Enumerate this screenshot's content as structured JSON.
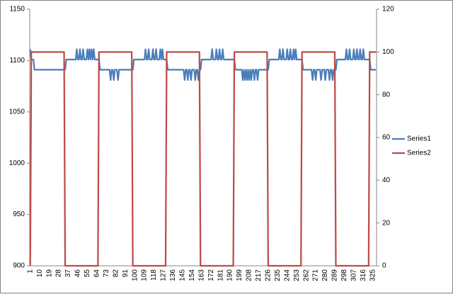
{
  "chart_data": {
    "type": "line",
    "categories": [
      1,
      null,
      null,
      null,
      null,
      null,
      null,
      null,
      null,
      10,
      null,
      null,
      null,
      null,
      null,
      null,
      null,
      null,
      19,
      null,
      null,
      null,
      null,
      null,
      null,
      null,
      null,
      28,
      null,
      null,
      null,
      null,
      null,
      null,
      null,
      null,
      37,
      null,
      null,
      null,
      null,
      null,
      null,
      null,
      null,
      46,
      null,
      null,
      null,
      null,
      null,
      null,
      null,
      null,
      55,
      null,
      null,
      null,
      null,
      null,
      null,
      null,
      null,
      64,
      null,
      null,
      null,
      null,
      null,
      null,
      null,
      null,
      73,
      null,
      null,
      null,
      null,
      null,
      null,
      null,
      null,
      82,
      null,
      null,
      null,
      null,
      null,
      null,
      null,
      null,
      91,
      null,
      null,
      null,
      null,
      null,
      null,
      null,
      null,
      100,
      null,
      null,
      null,
      null,
      null,
      null,
      null,
      null,
      109,
      null,
      null,
      null,
      null,
      null,
      null,
      null,
      null,
      118,
      null,
      null,
      null,
      null,
      null,
      null,
      null,
      null,
      127,
      null,
      null,
      null,
      null,
      null,
      null,
      null,
      null,
      136,
      null,
      null,
      null,
      null,
      null,
      null,
      null,
      null,
      145,
      null,
      null,
      null,
      null,
      null,
      null,
      null,
      null,
      154,
      null,
      null,
      null,
      null,
      null,
      null,
      null,
      null,
      163,
      null,
      null,
      null,
      null,
      null,
      null,
      null,
      null,
      172,
      null,
      null,
      null,
      null,
      null,
      null,
      null,
      null,
      181,
      null,
      null,
      null,
      null,
      null,
      null,
      null,
      null,
      190,
      null,
      null,
      null,
      null,
      null,
      null,
      null,
      null,
      199,
      null,
      null,
      null,
      null,
      null,
      null,
      null,
      null,
      208,
      null,
      null,
      null,
      null,
      null,
      null,
      null,
      null,
      217,
      null,
      null,
      null,
      null,
      null,
      null,
      null,
      null,
      226,
      null,
      null,
      null,
      null,
      null,
      null,
      null,
      null,
      235,
      null,
      null,
      null,
      null,
      null,
      null,
      null,
      null,
      244,
      null,
      null,
      null,
      null,
      null,
      null,
      null,
      null,
      253,
      null,
      null,
      null,
      null,
      null,
      null,
      null,
      null,
      262,
      null,
      null,
      null,
      null,
      null,
      null,
      null,
      null,
      271,
      null,
      null,
      null,
      null,
      null,
      null,
      null,
      null,
      280,
      null,
      null,
      null,
      null,
      null,
      null,
      null,
      null,
      289,
      null,
      null,
      null,
      null,
      null,
      null,
      null,
      null,
      298,
      null,
      null,
      null,
      null,
      null,
      null,
      null,
      null,
      307,
      null,
      null,
      null,
      null,
      null,
      null,
      null,
      null,
      316,
      null,
      null,
      null,
      null,
      null,
      null,
      null,
      null,
      325,
      null,
      null,
      null
    ],
    "series": [
      {
        "name": "Series1",
        "color": "#4a7ebb",
        "values": [
          1111,
          1101,
          1101,
          1101,
          1091,
          1091,
          1091,
          1091,
          1091,
          1091,
          1091,
          1091,
          1091,
          1091,
          1091,
          1091,
          1091,
          1091,
          1091,
          1091,
          1091,
          1091,
          1091,
          1091,
          1091,
          1091,
          1091,
          1091,
          1091,
          1091,
          1091,
          1091,
          1091,
          1091,
          1101,
          1101,
          1101,
          1101,
          1101,
          1101,
          1101,
          1101,
          1101,
          1101,
          1111,
          1101,
          1101,
          1111,
          1101,
          1101,
          1111,
          1101,
          1101,
          1101,
          1111,
          1101,
          1111,
          1101,
          1111,
          1101,
          1111,
          1101,
          1101,
          1101,
          1101,
          1101,
          1091,
          1091,
          1091,
          1091,
          1091,
          1091,
          1091,
          1091,
          1091,
          1091,
          1081,
          1091,
          1091,
          1081,
          1091,
          1091,
          1091,
          1081,
          1091,
          1091,
          1091,
          1091,
          1091,
          1091,
          1091,
          1091,
          1091,
          1091,
          1091,
          1091,
          1091,
          1091,
          1101,
          1101,
          1101,
          1101,
          1101,
          1101,
          1101,
          1101,
          1101,
          1101,
          1101,
          1111,
          1101,
          1101,
          1111,
          1101,
          1101,
          1101,
          1111,
          1101,
          1101,
          1111,
          1101,
          1101,
          1101,
          1111,
          1101,
          1111,
          1101,
          1101,
          1101,
          1101,
          1091,
          1091,
          1091,
          1091,
          1091,
          1091,
          1091,
          1091,
          1091,
          1091,
          1091,
          1091,
          1091,
          1091,
          1091,
          1091,
          1081,
          1091,
          1091,
          1081,
          1091,
          1091,
          1081,
          1091,
          1091,
          1091,
          1081,
          1091,
          1091,
          1081,
          1091,
          1091,
          1101,
          1101,
          1101,
          1101,
          1101,
          1101,
          1101,
          1101,
          1101,
          1101,
          1111,
          1101,
          1101,
          1101,
          1111,
          1101,
          1101,
          1111,
          1101,
          1101,
          1111,
          1101,
          1101,
          1101,
          1101,
          1101,
          1101,
          1101,
          1101,
          1101,
          1101,
          1101,
          1091,
          1091,
          1091,
          1091,
          1091,
          1091,
          1091,
          1081,
          1091,
          1081,
          1091,
          1081,
          1091,
          1081,
          1091,
          1081,
          1091,
          1091,
          1081,
          1091,
          1091,
          1081,
          1091,
          1091,
          1091,
          1091,
          1091,
          1091,
          1091,
          1091,
          1091,
          1091,
          1101,
          1101,
          1101,
          1101,
          1101,
          1101,
          1101,
          1101,
          1101,
          1101,
          1111,
          1101,
          1101,
          1111,
          1101,
          1101,
          1101,
          1111,
          1101,
          1101,
          1111,
          1101,
          1101,
          1111,
          1101,
          1111,
          1101,
          1101,
          1101,
          1101,
          1101,
          1101,
          1091,
          1091,
          1091,
          1091,
          1091,
          1091,
          1091,
          1091,
          1091,
          1081,
          1091,
          1091,
          1081,
          1091,
          1091,
          1091,
          1091,
          1081,
          1091,
          1091,
          1091,
          1081,
          1091,
          1091,
          1091,
          1081,
          1091,
          1091,
          1081,
          1091,
          1091,
          1091,
          1101,
          1101,
          1101,
          1101,
          1101,
          1101,
          1101,
          1101,
          1101,
          1111,
          1101,
          1101,
          1111,
          1101,
          1101,
          1101,
          1111,
          1101,
          1101,
          1111,
          1101,
          1101,
          1111,
          1101,
          1101,
          1111,
          1101,
          1101,
          1101,
          1101,
          1101,
          1101,
          1091,
          1091,
          1091,
          1091,
          1091,
          1091
        ]
      },
      {
        "name": "Series2",
        "color": "#be4b48",
        "axis": "y2",
        "values": [
          0,
          100,
          100,
          100,
          100,
          100,
          100,
          100,
          100,
          100,
          100,
          100,
          100,
          100,
          100,
          100,
          100,
          100,
          100,
          100,
          100,
          100,
          100,
          100,
          100,
          100,
          100,
          100,
          100,
          100,
          100,
          100,
          100,
          0,
          0,
          0,
          0,
          0,
          0,
          0,
          0,
          0,
          0,
          0,
          0,
          0,
          0,
          0,
          0,
          0,
          0,
          0,
          0,
          0,
          0,
          0,
          0,
          0,
          0,
          0,
          0,
          0,
          0,
          0,
          0,
          100,
          100,
          100,
          100,
          100,
          100,
          100,
          100,
          100,
          100,
          100,
          100,
          100,
          100,
          100,
          100,
          100,
          100,
          100,
          100,
          100,
          100,
          100,
          100,
          100,
          100,
          100,
          100,
          100,
          100,
          100,
          100,
          0,
          0,
          0,
          0,
          0,
          0,
          0,
          0,
          0,
          0,
          0,
          0,
          0,
          0,
          0,
          0,
          0,
          0,
          0,
          0,
          0,
          0,
          0,
          0,
          0,
          0,
          0,
          0,
          0,
          0,
          0,
          0,
          100,
          100,
          100,
          100,
          100,
          100,
          100,
          100,
          100,
          100,
          100,
          100,
          100,
          100,
          100,
          100,
          100,
          100,
          100,
          100,
          100,
          100,
          100,
          100,
          100,
          100,
          100,
          100,
          100,
          100,
          100,
          100,
          0,
          0,
          0,
          0,
          0,
          0,
          0,
          0,
          0,
          0,
          0,
          0,
          0,
          0,
          0,
          0,
          0,
          0,
          0,
          0,
          0,
          0,
          0,
          0,
          0,
          0,
          0,
          0,
          0,
          0,
          0,
          0,
          100,
          100,
          100,
          100,
          100,
          100,
          100,
          100,
          100,
          100,
          100,
          100,
          100,
          100,
          100,
          100,
          100,
          100,
          100,
          100,
          100,
          100,
          100,
          100,
          100,
          100,
          100,
          100,
          100,
          100,
          100,
          100,
          0,
          0,
          0,
          0,
          0,
          0,
          0,
          0,
          0,
          0,
          0,
          0,
          0,
          0,
          0,
          0,
          0,
          0,
          0,
          0,
          0,
          0,
          0,
          0,
          0,
          0,
          0,
          0,
          0,
          0,
          0,
          0,
          100,
          100,
          100,
          100,
          100,
          100,
          100,
          100,
          100,
          100,
          100,
          100,
          100,
          100,
          100,
          100,
          100,
          100,
          100,
          100,
          100,
          100,
          100,
          100,
          100,
          100,
          100,
          100,
          100,
          100,
          100,
          100,
          0,
          0,
          0,
          0,
          0,
          0,
          0,
          0,
          0,
          0,
          0,
          0,
          0,
          0,
          0,
          0,
          0,
          0,
          0,
          0,
          0,
          0,
          0,
          0,
          0,
          0,
          0,
          0,
          0,
          0,
          0,
          0,
          100,
          100,
          100,
          100,
          100,
          100,
          100
        ]
      }
    ],
    "ylim": [
      900,
      1150
    ],
    "yticks": [
      900,
      950,
      1000,
      1050,
      1100,
      1150
    ],
    "y2lim": [
      0,
      120
    ],
    "y2ticks": [
      0,
      20,
      40,
      60,
      80,
      100,
      120
    ],
    "grid": false,
    "legend": "right"
  }
}
